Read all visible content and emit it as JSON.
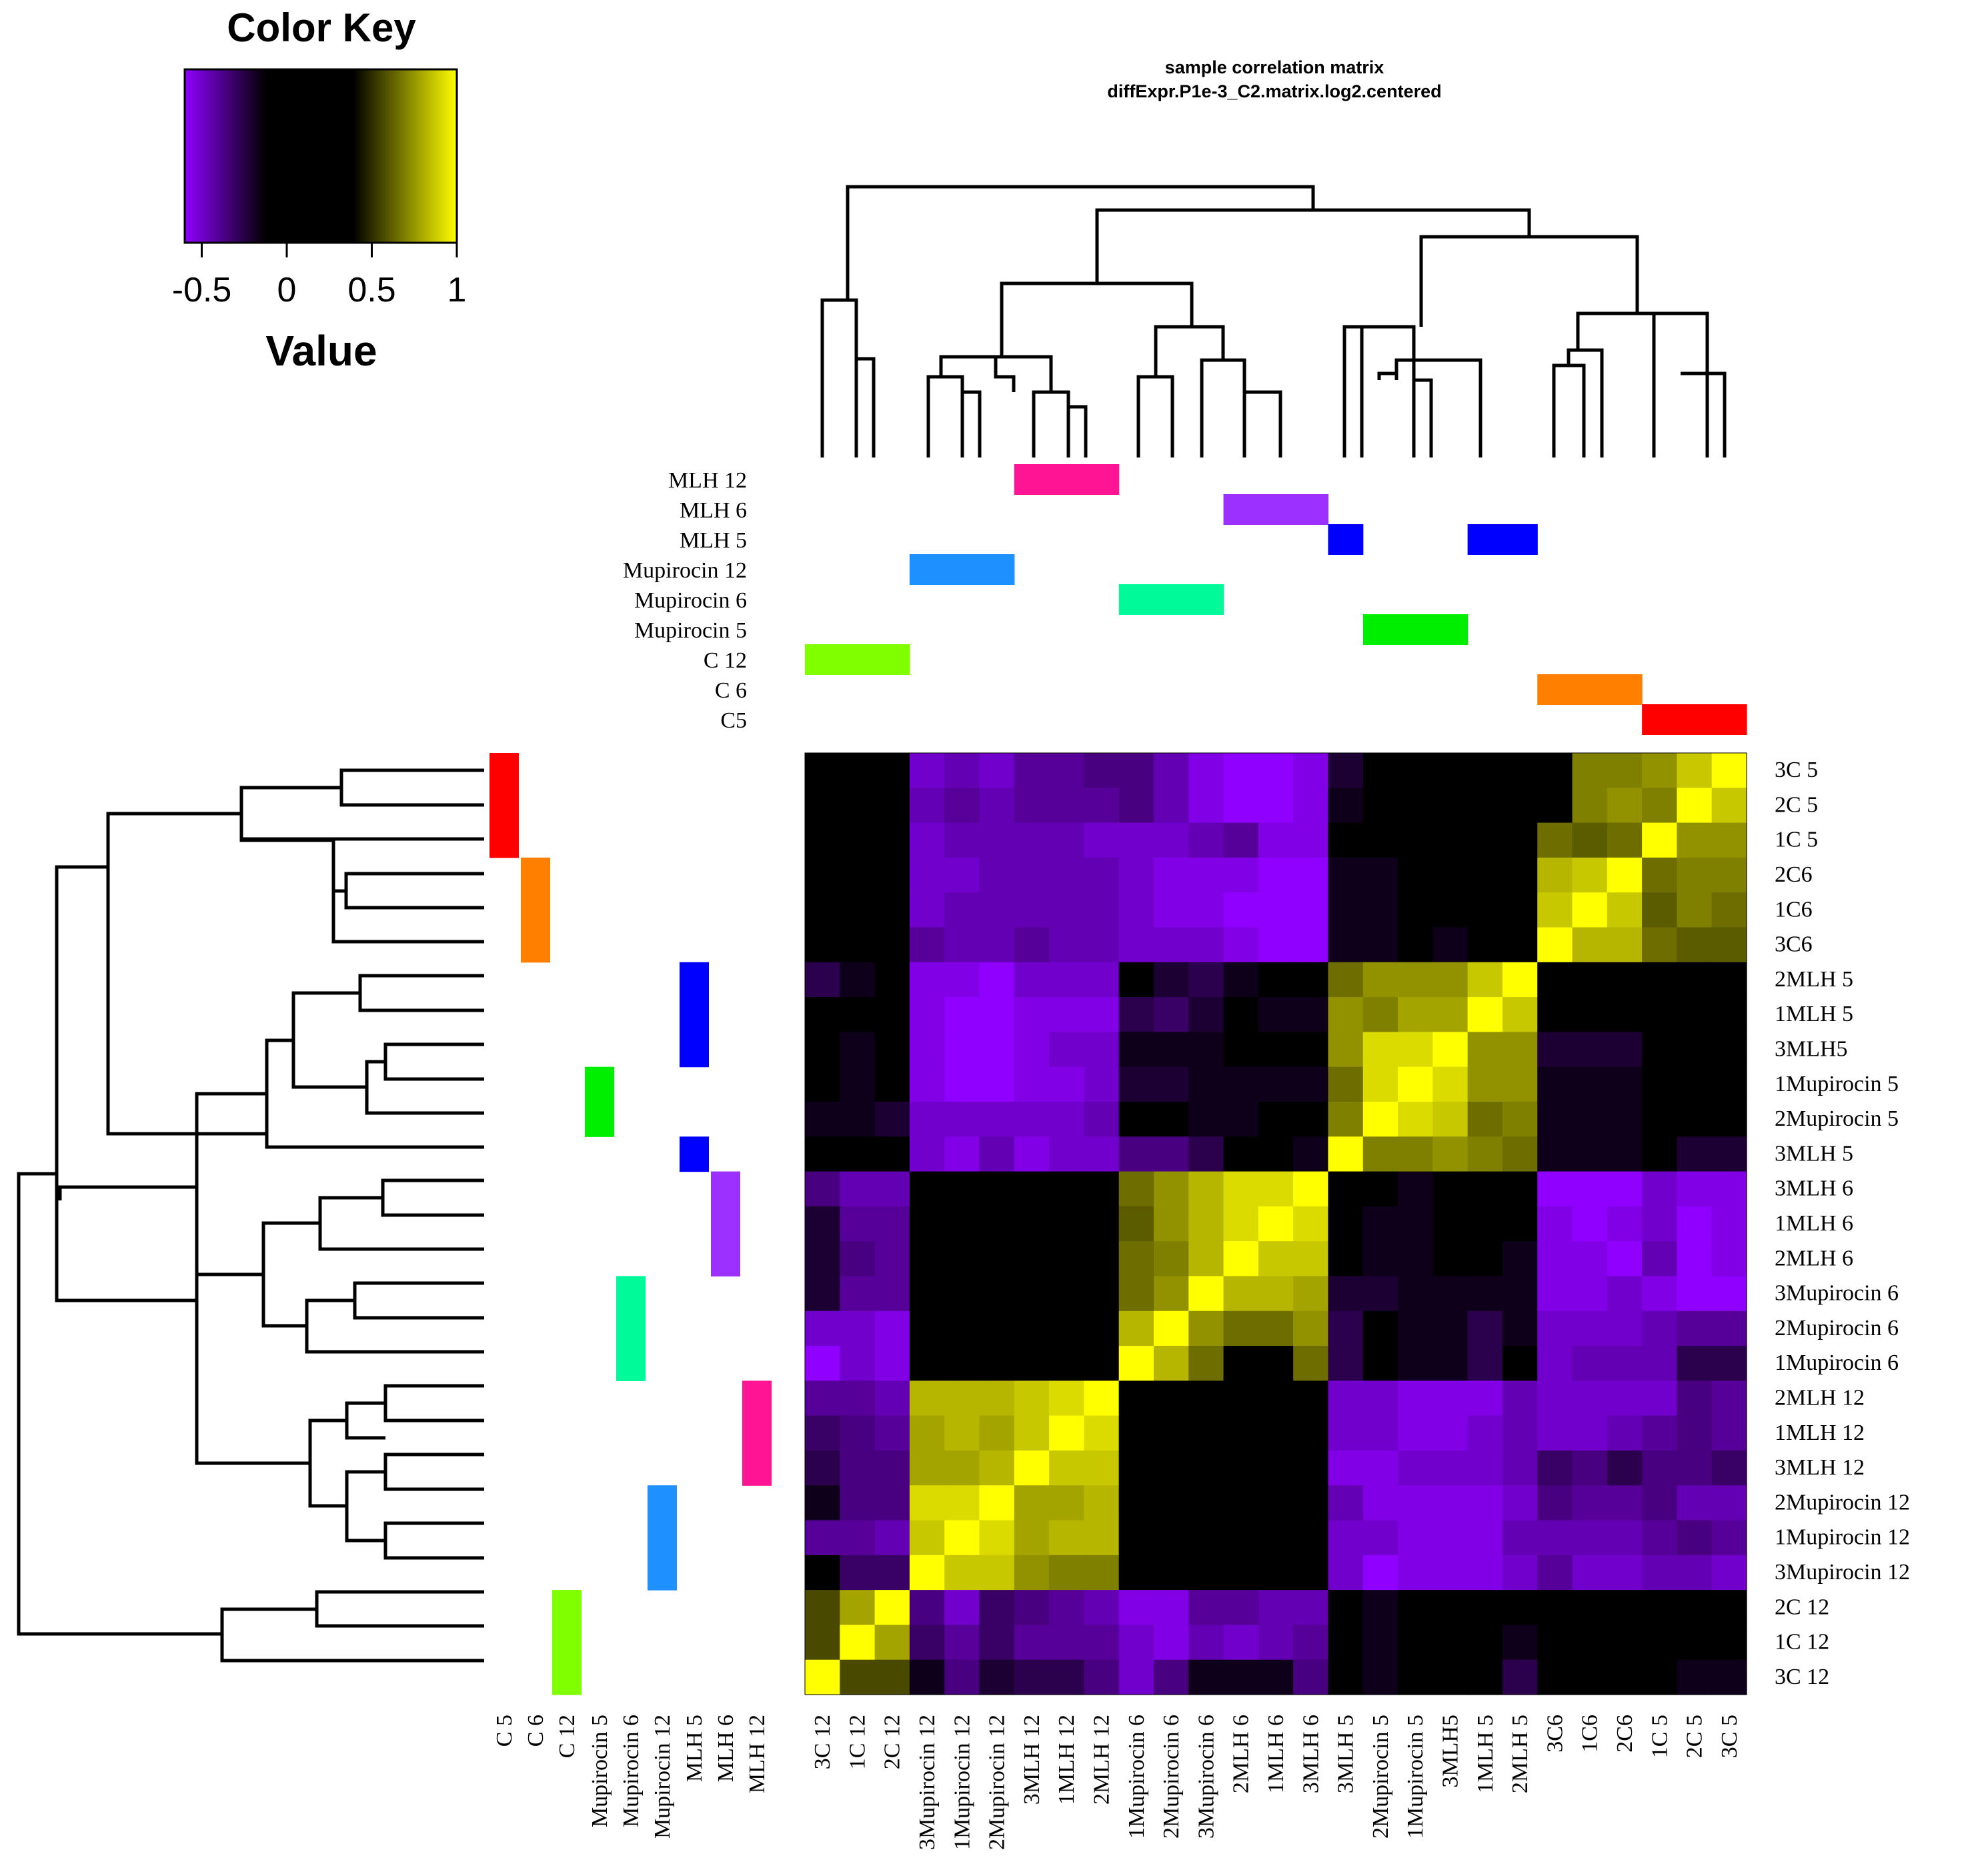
{
  "chart_data": {
    "type": "heatmap",
    "title": "sample correlation matrix",
    "subtitle": "diffExpr.P1e-3_C2.matrix.log2.centered",
    "color_key": {
      "title": "Color Key",
      "xlabel": "Value",
      "ticks": [
        "-0.5",
        "0",
        "0.5",
        "1"
      ],
      "tick_values": [
        -0.5,
        0,
        0.5,
        1
      ],
      "range": [
        -0.6,
        1.0
      ],
      "colors": [
        "#8f00ff",
        "#000000",
        "#000000",
        "#ffff00"
      ]
    },
    "groups": [
      {
        "name": "MLH 12",
        "color": "#ff1493"
      },
      {
        "name": "MLH 6",
        "color": "#9b30ff"
      },
      {
        "name": "MLH 5",
        "color": "#0000ff"
      },
      {
        "name": "Mupirocin 12",
        "color": "#1e90ff"
      },
      {
        "name": "Mupirocin 6",
        "color": "#00fa9a"
      },
      {
        "name": "Mupirocin 5",
        "color": "#00ee00"
      },
      {
        "name": "C 12",
        "color": "#7fff00"
      },
      {
        "name": "C 6",
        "color": "#ff7f00"
      },
      {
        "name": "C5",
        "color": "#ff0000"
      }
    ],
    "column_group_labels": [
      "C 5",
      "C 6",
      "C 12",
      "Mupirocin 5",
      "Mupirocin 6",
      "Mupirocin 12",
      "MLH 5",
      "MLH 6",
      "MLH 12"
    ],
    "columns": [
      "3C 12",
      "1C 12",
      "2C 12",
      "3Mupirocin 12",
      "1Mupirocin 12",
      "2Mupirocin 12",
      "3MLH 12",
      "1MLH 12",
      "2MLH 12",
      "1Mupirocin 6",
      "2Mupirocin 6",
      "3Mupirocin 6",
      "2MLH 6",
      "1MLH 6",
      "3MLH 6",
      "3MLH 5",
      "2Mupirocin 5",
      "1Mupirocin 5",
      "3MLH5",
      "1MLH 5",
      "2MLH 5",
      "3C6",
      "1C6",
      "2C6",
      "1C 5",
      "2C 5",
      "3C 5"
    ],
    "rows": [
      "3C 5",
      "2C 5",
      "1C 5",
      "2C6",
      "1C6",
      "3C6",
      "2MLH 5",
      "1MLH 5",
      "3MLH5",
      "1Mupirocin 5",
      "2Mupirocin 5",
      "3MLH 5",
      "3MLH 6",
      "1MLH 6",
      "2MLH 6",
      "3Mupirocin 6",
      "2Mupirocin 6",
      "1Mupirocin 6",
      "2MLH 12",
      "1MLH 12",
      "3MLH 12",
      "2Mupirocin 12",
      "1Mupirocin 12",
      "3Mupirocin 12",
      "2C 12",
      "1C 12",
      "3C 12"
    ],
    "column_group_index": [
      6,
      6,
      6,
      3,
      3,
      3,
      0,
      0,
      0,
      4,
      4,
      4,
      1,
      1,
      1,
      2,
      5,
      5,
      5,
      2,
      2,
      7,
      7,
      7,
      8,
      8,
      8
    ],
    "values": [
      [
        -0.05,
        0.0,
        0.0,
        -0.45,
        -0.4,
        -0.45,
        -0.35,
        -0.35,
        -0.3,
        -0.3,
        -0.4,
        -0.5,
        -0.55,
        -0.55,
        -0.5,
        -0.15,
        0.0,
        0.0,
        0.0,
        0.0,
        0.0,
        0.0,
        0.65,
        0.65,
        0.7,
        0.85,
        1.0
      ],
      [
        0.0,
        0.0,
        0.0,
        -0.4,
        -0.35,
        -0.4,
        -0.35,
        -0.35,
        -0.35,
        -0.3,
        -0.4,
        -0.5,
        -0.55,
        -0.55,
        -0.5,
        -0.1,
        0.0,
        0.0,
        0.0,
        0.0,
        0.0,
        0.0,
        0.65,
        0.7,
        0.65,
        1.0,
        0.85
      ],
      [
        0.0,
        0.0,
        0.0,
        -0.45,
        -0.4,
        -0.4,
        -0.4,
        -0.4,
        -0.45,
        -0.45,
        -0.45,
        -0.4,
        -0.35,
        -0.5,
        -0.5,
        0.0,
        0.0,
        0.0,
        0.0,
        0.0,
        0.0,
        0.6,
        0.55,
        0.6,
        1.0,
        0.7,
        0.7
      ],
      [
        0.0,
        0.0,
        0.0,
        -0.45,
        -0.45,
        -0.4,
        -0.4,
        -0.4,
        -0.4,
        -0.45,
        -0.5,
        -0.5,
        -0.5,
        -0.55,
        -0.55,
        -0.1,
        -0.1,
        0.0,
        0.0,
        0.0,
        0.0,
        0.8,
        0.85,
        1.0,
        0.6,
        0.65,
        0.65
      ],
      [
        0.0,
        0.0,
        0.0,
        -0.45,
        -0.4,
        -0.4,
        -0.4,
        -0.4,
        -0.4,
        -0.45,
        -0.5,
        -0.5,
        -0.55,
        -0.55,
        -0.55,
        -0.1,
        -0.1,
        0.0,
        0.0,
        0.0,
        0.0,
        0.85,
        1.0,
        0.85,
        0.55,
        0.65,
        0.6
      ],
      [
        0.0,
        0.0,
        0.0,
        -0.35,
        -0.4,
        -0.4,
        -0.35,
        -0.4,
        -0.4,
        -0.45,
        -0.45,
        -0.45,
        -0.5,
        -0.55,
        -0.55,
        -0.1,
        -0.1,
        0.0,
        -0.1,
        0.0,
        0.0,
        1.0,
        0.8,
        0.8,
        0.6,
        0.55,
        0.55
      ],
      [
        -0.2,
        -0.1,
        0.0,
        -0.5,
        -0.5,
        -0.55,
        -0.45,
        -0.45,
        -0.45,
        0.0,
        -0.15,
        -0.2,
        -0.1,
        0.0,
        0.0,
        0.6,
        0.7,
        0.7,
        0.7,
        0.85,
        1.0,
        0.0,
        0.0,
        0.0,
        0.0,
        0.0,
        0.0
      ],
      [
        0.0,
        0.0,
        0.0,
        -0.5,
        -0.55,
        -0.55,
        -0.5,
        -0.5,
        -0.5,
        -0.2,
        -0.25,
        -0.15,
        0.0,
        -0.1,
        -0.1,
        0.7,
        0.65,
        0.75,
        0.75,
        1.0,
        0.85,
        0.0,
        0.0,
        0.0,
        0.0,
        0.0,
        0.0
      ],
      [
        0.0,
        -0.1,
        0.0,
        -0.5,
        -0.55,
        -0.55,
        -0.5,
        -0.45,
        -0.45,
        -0.1,
        -0.1,
        -0.1,
        0.0,
        0.0,
        0.0,
        0.7,
        0.9,
        0.9,
        1.0,
        0.7,
        0.7,
        -0.15,
        -0.15,
        -0.15,
        0.0,
        0.0,
        0.0
      ],
      [
        0.0,
        -0.1,
        0.0,
        -0.5,
        -0.55,
        -0.55,
        -0.5,
        -0.5,
        -0.45,
        -0.15,
        -0.15,
        -0.1,
        -0.1,
        -0.1,
        -0.1,
        0.6,
        0.9,
        1.0,
        0.9,
        0.7,
        0.7,
        -0.1,
        -0.1,
        -0.1,
        0.0,
        0.0,
        0.0
      ],
      [
        -0.1,
        -0.1,
        -0.15,
        -0.45,
        -0.45,
        -0.45,
        -0.45,
        -0.45,
        -0.4,
        0.0,
        0.0,
        -0.1,
        -0.1,
        0.0,
        0.0,
        0.65,
        1.0,
        0.9,
        0.85,
        0.6,
        0.65,
        -0.1,
        -0.1,
        -0.1,
        0.0,
        0.0,
        0.0
      ],
      [
        0.0,
        0.0,
        0.0,
        -0.45,
        -0.5,
        -0.4,
        -0.5,
        -0.45,
        -0.45,
        -0.3,
        -0.3,
        -0.2,
        0.0,
        0.0,
        -0.1,
        1.0,
        0.65,
        0.65,
        0.7,
        0.65,
        0.6,
        -0.1,
        -0.1,
        -0.1,
        0.0,
        -0.15,
        -0.15
      ],
      [
        -0.3,
        -0.4,
        -0.4,
        0.0,
        0.0,
        0.0,
        0.0,
        0.0,
        0.0,
        0.6,
        0.7,
        0.8,
        0.9,
        0.9,
        1.0,
        0.0,
        0.0,
        -0.1,
        0.0,
        0.0,
        0.0,
        -0.55,
        -0.55,
        -0.55,
        -0.45,
        -0.5,
        -0.5
      ],
      [
        -0.15,
        -0.35,
        -0.35,
        0.0,
        0.0,
        0.0,
        0.0,
        0.0,
        0.0,
        0.55,
        0.7,
        0.8,
        0.9,
        1.0,
        0.9,
        0.0,
        -0.1,
        -0.1,
        0.0,
        0.0,
        0.0,
        -0.5,
        -0.55,
        -0.5,
        -0.45,
        -0.55,
        -0.5
      ],
      [
        -0.15,
        -0.3,
        -0.35,
        0.0,
        0.0,
        0.0,
        0.0,
        0.0,
        0.0,
        0.6,
        0.65,
        0.8,
        1.0,
        0.85,
        0.85,
        0.0,
        -0.1,
        -0.1,
        0.0,
        0.0,
        -0.1,
        -0.5,
        -0.5,
        -0.55,
        -0.4,
        -0.55,
        -0.5
      ],
      [
        -0.15,
        -0.35,
        -0.35,
        0.0,
        0.0,
        0.0,
        0.0,
        0.0,
        0.0,
        0.6,
        0.7,
        1.0,
        0.8,
        0.8,
        0.75,
        -0.15,
        -0.15,
        -0.1,
        -0.1,
        -0.1,
        -0.1,
        -0.5,
        -0.5,
        -0.45,
        -0.5,
        -0.55,
        -0.55
      ],
      [
        -0.45,
        -0.45,
        -0.5,
        0.0,
        0.0,
        0.0,
        0.0,
        0.0,
        0.0,
        0.8,
        1.0,
        0.7,
        0.6,
        0.6,
        0.7,
        -0.2,
        0.0,
        -0.1,
        -0.1,
        -0.2,
        -0.1,
        -0.45,
        -0.45,
        -0.45,
        -0.4,
        -0.35,
        -0.35
      ],
      [
        -0.55,
        -0.45,
        -0.5,
        0.0,
        0.0,
        0.0,
        0.0,
        0.0,
        0.0,
        1.0,
        0.8,
        0.6,
        0.0,
        0.0,
        0.6,
        -0.2,
        0.0,
        -0.1,
        -0.1,
        -0.2,
        0.0,
        -0.45,
        -0.4,
        -0.4,
        -0.4,
        -0.2,
        -0.2
      ],
      [
        -0.35,
        -0.35,
        -0.4,
        0.8,
        0.8,
        0.8,
        0.85,
        0.9,
        1.0,
        0.0,
        0.0,
        0.0,
        0.0,
        0.0,
        0.0,
        -0.45,
        -0.45,
        -0.5,
        -0.5,
        -0.5,
        -0.4,
        -0.45,
        -0.45,
        -0.45,
        -0.45,
        -0.3,
        -0.35
      ],
      [
        -0.25,
        -0.3,
        -0.35,
        0.75,
        0.8,
        0.75,
        0.85,
        1.0,
        0.9,
        0.0,
        0.0,
        0.0,
        0.0,
        0.0,
        0.0,
        -0.45,
        -0.45,
        -0.5,
        -0.5,
        -0.45,
        -0.4,
        -0.45,
        -0.45,
        -0.4,
        -0.35,
        -0.3,
        -0.35
      ],
      [
        -0.2,
        -0.3,
        -0.3,
        0.75,
        0.75,
        0.8,
        1.0,
        0.85,
        0.85,
        0.0,
        0.0,
        0.0,
        0.0,
        0.0,
        0.0,
        -0.5,
        -0.5,
        -0.45,
        -0.45,
        -0.45,
        -0.4,
        -0.25,
        -0.3,
        -0.2,
        -0.3,
        -0.3,
        -0.25
      ],
      [
        -0.1,
        -0.3,
        -0.3,
        0.9,
        0.9,
        1.0,
        0.75,
        0.75,
        0.8,
        0.0,
        0.0,
        0.0,
        0.0,
        0.0,
        0.0,
        -0.4,
        -0.5,
        -0.5,
        -0.5,
        -0.5,
        -0.45,
        -0.3,
        -0.35,
        -0.35,
        -0.3,
        -0.4,
        -0.4
      ],
      [
        -0.35,
        -0.35,
        -0.4,
        0.85,
        1.0,
        0.9,
        0.75,
        0.8,
        0.8,
        0.0,
        0.0,
        0.0,
        0.0,
        0.0,
        0.0,
        -0.45,
        -0.45,
        -0.5,
        -0.5,
        -0.5,
        -0.4,
        -0.4,
        -0.4,
        -0.4,
        -0.35,
        -0.3,
        -0.35
      ],
      [
        -0.05,
        -0.25,
        -0.25,
        1.0,
        0.85,
        0.85,
        0.7,
        0.65,
        0.65,
        0.0,
        0.0,
        0.0,
        0.0,
        0.0,
        0.0,
        -0.45,
        -0.55,
        -0.5,
        -0.5,
        -0.5,
        -0.45,
        -0.35,
        -0.45,
        -0.45,
        -0.4,
        -0.4,
        -0.45
      ],
      [
        0.5,
        0.75,
        1.0,
        -0.3,
        -0.45,
        -0.25,
        -0.3,
        -0.35,
        -0.4,
        -0.5,
        -0.5,
        -0.35,
        -0.35,
        -0.4,
        -0.4,
        0.0,
        -0.1,
        0.0,
        -0.05,
        0.0,
        0.0,
        0.0,
        0.0,
        0.0,
        0.0,
        0.0,
        0.0
      ],
      [
        0.5,
        1.0,
        0.75,
        -0.25,
        -0.35,
        -0.25,
        -0.35,
        -0.35,
        -0.35,
        -0.45,
        -0.5,
        -0.4,
        -0.45,
        -0.4,
        -0.35,
        0.0,
        -0.1,
        -0.05,
        -0.05,
        0.0,
        -0.1,
        0.0,
        0.0,
        0.0,
        0.0,
        0.0,
        0.0
      ],
      [
        1.0,
        0.5,
        0.5,
        -0.1,
        -0.3,
        -0.15,
        -0.2,
        -0.2,
        -0.3,
        -0.45,
        -0.3,
        -0.1,
        -0.1,
        -0.1,
        -0.3,
        0.0,
        -0.1,
        0.0,
        0.0,
        0.0,
        -0.2,
        0.0,
        0.0,
        0.0,
        0.0,
        -0.1,
        -0.1
      ]
    ]
  }
}
